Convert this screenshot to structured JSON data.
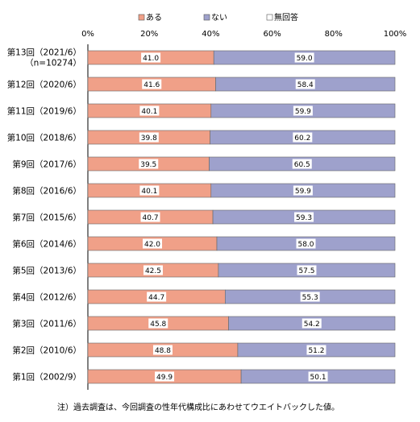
{
  "chart_data": {
    "type": "bar",
    "orientation": "horizontal",
    "stacked": "percent",
    "categories": [
      [
        "第13回（2021/6）",
        "（n=10274）"
      ],
      [
        "第12回（2020/6）"
      ],
      [
        "第11回（2019/6）"
      ],
      [
        "第10回（2018/6）"
      ],
      [
        "第9回（2017/6）"
      ],
      [
        "第8回（2016/6）"
      ],
      [
        "第7回（2015/6）"
      ],
      [
        "第6回（2014/6）"
      ],
      [
        "第5回（2013/6）"
      ],
      [
        "第4回（2012/6）"
      ],
      [
        "第3回（2011/6）"
      ],
      [
        "第2回（2010/6）"
      ],
      [
        "第1回（2002/9）"
      ]
    ],
    "series": [
      {
        "name": "ある",
        "color": "#f0a088",
        "values": [
          41.0,
          41.6,
          40.1,
          39.8,
          39.5,
          40.1,
          40.7,
          42.0,
          42.5,
          44.7,
          45.8,
          48.8,
          49.9
        ]
      },
      {
        "name": "ない",
        "color": "#9ea1cc",
        "values": [
          59.0,
          58.4,
          59.9,
          60.2,
          60.5,
          59.9,
          59.3,
          58.0,
          57.5,
          55.3,
          54.2,
          51.2,
          50.1
        ]
      },
      {
        "name": "無回答",
        "color": "#ffffff",
        "values": [
          0,
          0,
          0,
          0,
          0,
          0,
          0,
          0,
          0,
          0,
          0,
          0,
          0
        ]
      }
    ],
    "data_labels": [
      [
        "41.0",
        "41.6",
        "40.1",
        "39.8",
        "39.5",
        "40.1",
        "40.7",
        "42.0",
        "42.5",
        "44.7",
        "45.8",
        "48.8",
        "49.9"
      ],
      [
        "59.0",
        "58.4",
        "59.9",
        "60.2",
        "60.5",
        "59.9",
        "59.3",
        "58.0",
        "57.5",
        "55.3",
        "54.2",
        "51.2",
        "50.1"
      ]
    ],
    "xlim": [
      0,
      100
    ],
    "xticks": [
      "0%",
      "20%",
      "40%",
      "60%",
      "80%",
      "100%"
    ],
    "legend_position": "top",
    "grid": false,
    "note": "注）過去調査は、今回調査の性年代構成比にあわせてウエイトバックした値。"
  }
}
